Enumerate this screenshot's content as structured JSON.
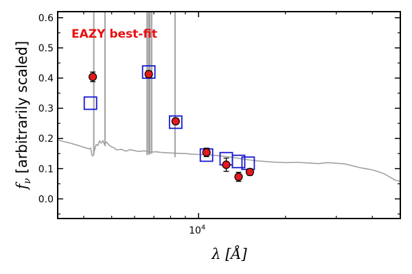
{
  "chart_data": {
    "type": "scatter",
    "xscale": "log",
    "xlim": [
      3250,
      50000
    ],
    "ylim": [
      -0.065,
      0.62
    ],
    "xticks": [
      {
        "value": 10000,
        "label": "10",
        "exp": "4"
      }
    ],
    "xminor": [
      4000,
      5000,
      6000,
      7000,
      8000,
      9000,
      20000,
      30000,
      40000
    ],
    "yticks": [
      0.0,
      0.1,
      0.2,
      0.3,
      0.4,
      0.5,
      0.6
    ],
    "ytick_labels": [
      "0.0",
      "0.1",
      "0.2",
      "0.3",
      "0.4",
      "0.5",
      "0.6"
    ],
    "yminor": [
      -0.05,
      0.05,
      0.15,
      0.25,
      0.35,
      0.45,
      0.55
    ],
    "xlabel": "λ [Å]",
    "ylabel": "f",
    "ylabel_sub": "ν",
    "ylabel_rest": " [arbitrarily scaled]",
    "annotation": "EAZY best-fit",
    "grid": false,
    "colors": {
      "template": "#a0a0a0",
      "observed": "#e41a1c",
      "model": "#1515d0",
      "annotation": "#e81010"
    },
    "series": [
      {
        "type": "line",
        "role": "template",
        "x": [
          3250,
          3400,
          3550,
          3700,
          3850,
          4000,
          4100,
          4180,
          4230,
          4270,
          4300,
          4330,
          4370,
          4420,
          4480,
          4540,
          4600,
          4660,
          4720,
          4800,
          4900,
          5000,
          5100,
          5200,
          5400,
          5600,
          5800,
          6000,
          6200,
          6500,
          6800,
          7100,
          7400,
          7700,
          8000,
          8500,
          9000,
          9500,
          10000,
          11000,
          12000,
          13000,
          14000,
          15000,
          16000,
          17000,
          18000,
          19000,
          20000,
          22000,
          24000,
          26000,
          28000,
          30000,
          32000,
          34000,
          36000,
          38000,
          40000,
          42000,
          44000,
          46000,
          48000,
          50000
        ],
        "y": [
          0.196,
          0.19,
          0.186,
          0.181,
          0.176,
          0.171,
          0.168,
          0.166,
          0.168,
          0.145,
          0.142,
          0.148,
          0.165,
          0.18,
          0.177,
          0.192,
          0.185,
          0.193,
          0.18,
          0.188,
          0.178,
          0.172,
          0.169,
          0.162,
          0.164,
          0.158,
          0.163,
          0.16,
          0.157,
          0.159,
          0.155,
          0.156,
          0.154,
          0.153,
          0.152,
          0.151,
          0.15,
          0.148,
          0.147,
          0.145,
          0.142,
          0.138,
          0.133,
          0.129,
          0.126,
          0.124,
          0.122,
          0.121,
          0.12,
          0.121,
          0.119,
          0.117,
          0.12,
          0.118,
          0.116,
          0.11,
          0.104,
          0.1,
          0.096,
          0.09,
          0.083,
          0.072,
          0.062,
          0.058
        ]
      },
      {
        "type": "emission_lines",
        "role": "template",
        "lines": [
          {
            "x": 4335,
            "top": 0.62,
            "base": 0.145
          },
          {
            "x": 4740,
            "top": 0.62,
            "base": 0.175
          },
          {
            "x": 6630,
            "top": 0.62,
            "base": 0.145
          },
          {
            "x": 6720,
            "top": 0.62,
            "base": 0.147
          },
          {
            "x": 6780,
            "top": 0.62,
            "base": 0.147
          },
          {
            "x": 6880,
            "top": 0.62,
            "base": 0.15
          },
          {
            "x": 8290,
            "top": 0.62,
            "base": 0.138
          }
        ]
      },
      {
        "type": "scatter",
        "role": "model",
        "marker": "square",
        "x": [
          4220,
          6720,
          8330,
          10650,
          12470,
          13760,
          14850
        ],
        "y": [
          0.317,
          0.42,
          0.254,
          0.145,
          0.133,
          0.124,
          0.118
        ]
      },
      {
        "type": "scatter",
        "role": "observed",
        "marker": "circle",
        "x": [
          4300,
          6720,
          8330,
          10650,
          12470,
          13760,
          15060
        ],
        "y": [
          0.404,
          0.413,
          0.257,
          0.154,
          0.113,
          0.073,
          0.089
        ],
        "yerr": [
          0.016,
          0.011,
          0.01,
          0.014,
          0.022,
          0.015,
          0.011
        ]
      }
    ]
  }
}
